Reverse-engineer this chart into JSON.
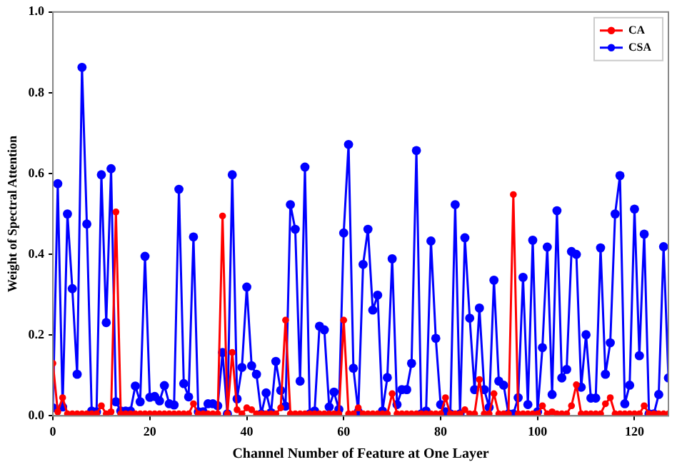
{
  "chart_data": {
    "type": "line",
    "xlabel": "Channel Number of Feature at One Layer",
    "ylabel": "Weight of Spectral Attention",
    "x": [
      0,
      1,
      2,
      3,
      4,
      5,
      6,
      7,
      8,
      9,
      10,
      11,
      12,
      13,
      14,
      15,
      16,
      17,
      18,
      19,
      20,
      21,
      22,
      23,
      24,
      25,
      26,
      27,
      28,
      29,
      30,
      31,
      32,
      33,
      34,
      35,
      36,
      37,
      38,
      39,
      40,
      41,
      42,
      43,
      44,
      45,
      46,
      47,
      48,
      49,
      50,
      51,
      52,
      53,
      54,
      55,
      56,
      57,
      58,
      59,
      60,
      61,
      62,
      63,
      64,
      65,
      66,
      67,
      68,
      69,
      70,
      71,
      72,
      73,
      74,
      75,
      76,
      77,
      78,
      79,
      80,
      81,
      82,
      83,
      84,
      85,
      86,
      87,
      88,
      89,
      90,
      91,
      92,
      93,
      94,
      95,
      96,
      97,
      98,
      99,
      100,
      101,
      102,
      103,
      104,
      105,
      106,
      107,
      108,
      109,
      110,
      111,
      112,
      113,
      114,
      115,
      116,
      117,
      118,
      119,
      120,
      121,
      122,
      123,
      124,
      125,
      126,
      127
    ],
    "series": [
      {
        "name": "CA",
        "color": "#ff0000",
        "values": [
          0.13,
          0.01,
          0.045,
          0.005,
          0.005,
          0.005,
          0.005,
          0.005,
          0.005,
          0.005,
          0.025,
          0.005,
          0.01,
          0.505,
          0.005,
          0.005,
          0.005,
          0.005,
          0.005,
          0.005,
          0.005,
          0.005,
          0.005,
          0.005,
          0.005,
          0.005,
          0.005,
          0.005,
          0.005,
          0.03,
          0.005,
          0.005,
          0.005,
          0.005,
          0.005,
          0.495,
          0.005,
          0.157,
          0.015,
          0.005,
          0.02,
          0.015,
          0.005,
          0.005,
          0.005,
          0.005,
          0.005,
          0.02,
          0.237,
          0.005,
          0.005,
          0.005,
          0.005,
          0.005,
          0.005,
          0.005,
          0.005,
          0.005,
          0.005,
          0.005,
          0.237,
          0.005,
          0.005,
          0.02,
          0.005,
          0.005,
          0.005,
          0.005,
          0.005,
          0.005,
          0.055,
          0.005,
          0.005,
          0.005,
          0.005,
          0.005,
          0.005,
          0.005,
          0.005,
          0.005,
          0.005,
          0.045,
          0.005,
          0.005,
          0.005,
          0.015,
          0.005,
          0.005,
          0.09,
          0.005,
          0.005,
          0.055,
          0.005,
          0.005,
          0.005,
          0.548,
          0.005,
          0.005,
          0.005,
          0.005,
          0.005,
          0.025,
          0.005,
          0.01,
          0.005,
          0.005,
          0.005,
          0.025,
          0.077,
          0.005,
          0.005,
          0.005,
          0.005,
          0.005,
          0.03,
          0.045,
          0.005,
          0.005,
          0.005,
          0.005,
          0.005,
          0.005,
          0.025,
          0.005,
          0.005,
          0.005,
          0.005,
          0.005
        ]
      },
      {
        "name": "CSA",
        "color": "#0000ff",
        "values": [
          0.02,
          0.575,
          0.022,
          0.5,
          0.315,
          0.103,
          0.863,
          0.475,
          0.012,
          0.01,
          0.597,
          0.231,
          0.612,
          0.035,
          0.012,
          0.012,
          0.012,
          0.074,
          0.035,
          0.395,
          0.046,
          0.048,
          0.037,
          0.075,
          0.03,
          0.027,
          0.561,
          0.08,
          0.047,
          0.443,
          0.01,
          0.01,
          0.03,
          0.03,
          0.025,
          0.157,
          0.005,
          0.597,
          0.042,
          0.12,
          0.319,
          0.124,
          0.103,
          0.005,
          0.057,
          0.008,
          0.135,
          0.063,
          0.024,
          0.523,
          0.462,
          0.086,
          0.616,
          0.005,
          0.012,
          0.222,
          0.213,
          0.022,
          0.059,
          0.016,
          0.453,
          0.672,
          0.118,
          0.01,
          0.375,
          0.462,
          0.262,
          0.299,
          0.012,
          0.095,
          0.389,
          0.028,
          0.065,
          0.065,
          0.13,
          0.657,
          0.005,
          0.012,
          0.433,
          0.192,
          0.028,
          0.01,
          0.005,
          0.523,
          0.005,
          0.441,
          0.242,
          0.065,
          0.267,
          0.065,
          0.021,
          0.336,
          0.086,
          0.076,
          0.005,
          0.005,
          0.045,
          0.343,
          0.028,
          0.435,
          0.01,
          0.169,
          0.418,
          0.053,
          0.508,
          0.094,
          0.115,
          0.407,
          0.4,
          0.071,
          0.201,
          0.044,
          0.044,
          0.416,
          0.103,
          0.181,
          0.5,
          0.595,
          0.03,
          0.076,
          0.512,
          0.149,
          0.45,
          0.005,
          0.005,
          0.053,
          0.419,
          0.094
        ]
      }
    ],
    "xlim": [
      0,
      127
    ],
    "xticks": [
      0,
      20,
      40,
      60,
      80,
      100,
      120
    ],
    "ylim": [
      0,
      1.0
    ],
    "yticks": [
      {
        "value": 0,
        "label": "0.0"
      },
      {
        "value": 0.2,
        "label": "0.2"
      },
      {
        "value": 0.4,
        "label": "0.4"
      },
      {
        "value": 0.6,
        "label": "0.6"
      },
      {
        "value": 0.8,
        "label": "0.8"
      },
      {
        "value": 1.0,
        "label": "1.0"
      }
    ],
    "legend": "top right",
    "marker": "circle",
    "line_style": "solid",
    "grid": false
  }
}
